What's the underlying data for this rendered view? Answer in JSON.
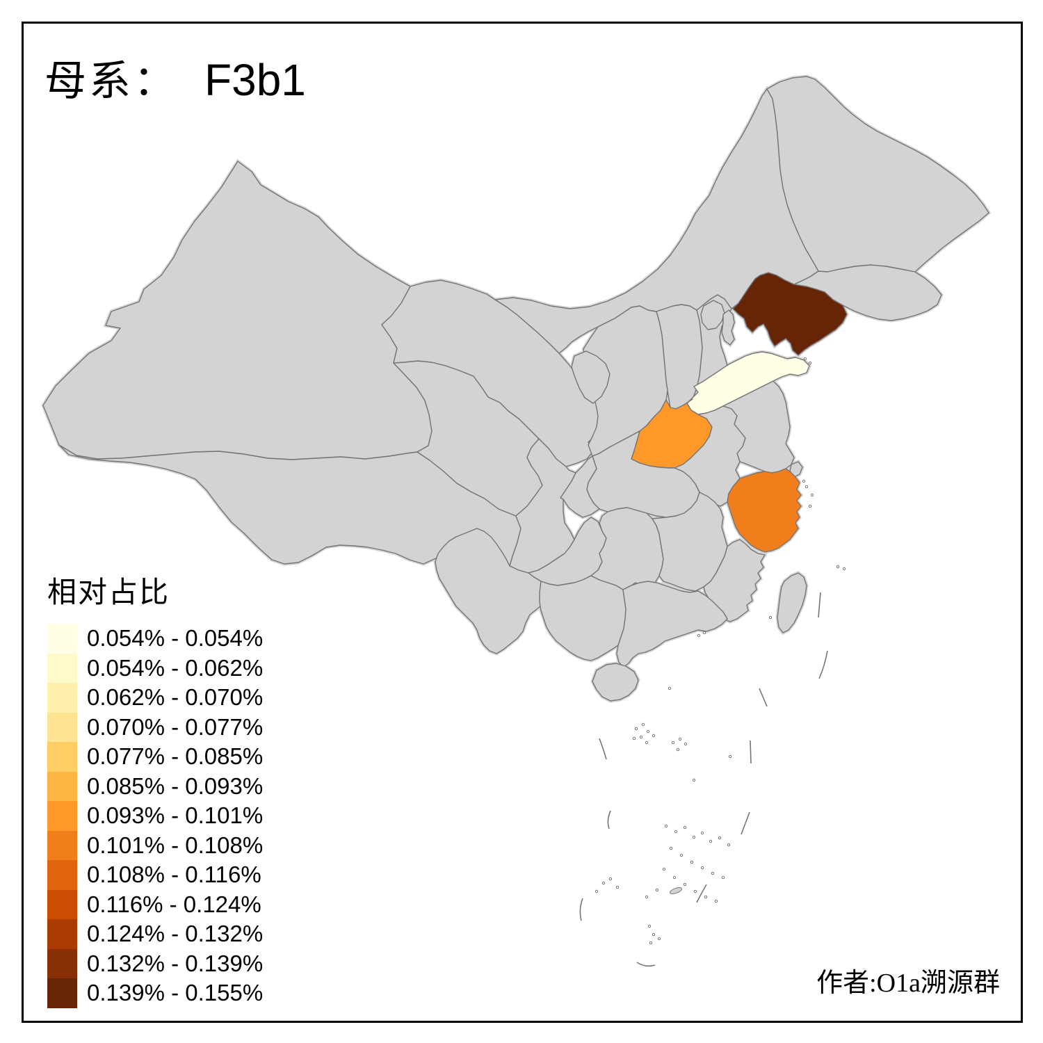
{
  "title": {
    "prefix": "母系：",
    "haplogroup": "F3b1"
  },
  "legend": {
    "title": "相对占比",
    "items": [
      {
        "label": "0.054% - 0.054%",
        "color": "#FFFFE5"
      },
      {
        "label": "0.054% - 0.062%",
        "color": "#FFFACA"
      },
      {
        "label": "0.062% - 0.070%",
        "color": "#FFF0AE"
      },
      {
        "label": "0.070% - 0.077%",
        "color": "#FEE391"
      },
      {
        "label": "0.077% - 0.085%",
        "color": "#FECE65"
      },
      {
        "label": "0.085% - 0.093%",
        "color": "#FEB642"
      },
      {
        "label": "0.093% - 0.101%",
        "color": "#FE9929"
      },
      {
        "label": "0.101% - 0.108%",
        "color": "#F27E1B"
      },
      {
        "label": "0.108% - 0.116%",
        "color": "#E1640E"
      },
      {
        "label": "0.116% - 0.124%",
        "color": "#CC4C02"
      },
      {
        "label": "0.124% - 0.132%",
        "color": "#AA3C03"
      },
      {
        "label": "0.132% - 0.139%",
        "color": "#882F05"
      },
      {
        "label": "0.139% - 0.155%",
        "color": "#662506"
      }
    ]
  },
  "map": {
    "default_fill": "#D3D3D3",
    "border_color": "#757575",
    "frame_color": "#000000",
    "highlighted": [
      {
        "province": "liaoning",
        "color": "#662506",
        "range": "0.139% - 0.155%"
      },
      {
        "province": "shandong",
        "color": "#FFFFE5",
        "range": "0.054% - 0.054%"
      },
      {
        "province": "henan",
        "color": "#FE9929",
        "range": "0.093% - 0.101%"
      },
      {
        "province": "zhejiang",
        "color": "#F27E1B",
        "range": "0.101% - 0.108%"
      }
    ]
  },
  "attribution": "作者:O1a溯源群"
}
